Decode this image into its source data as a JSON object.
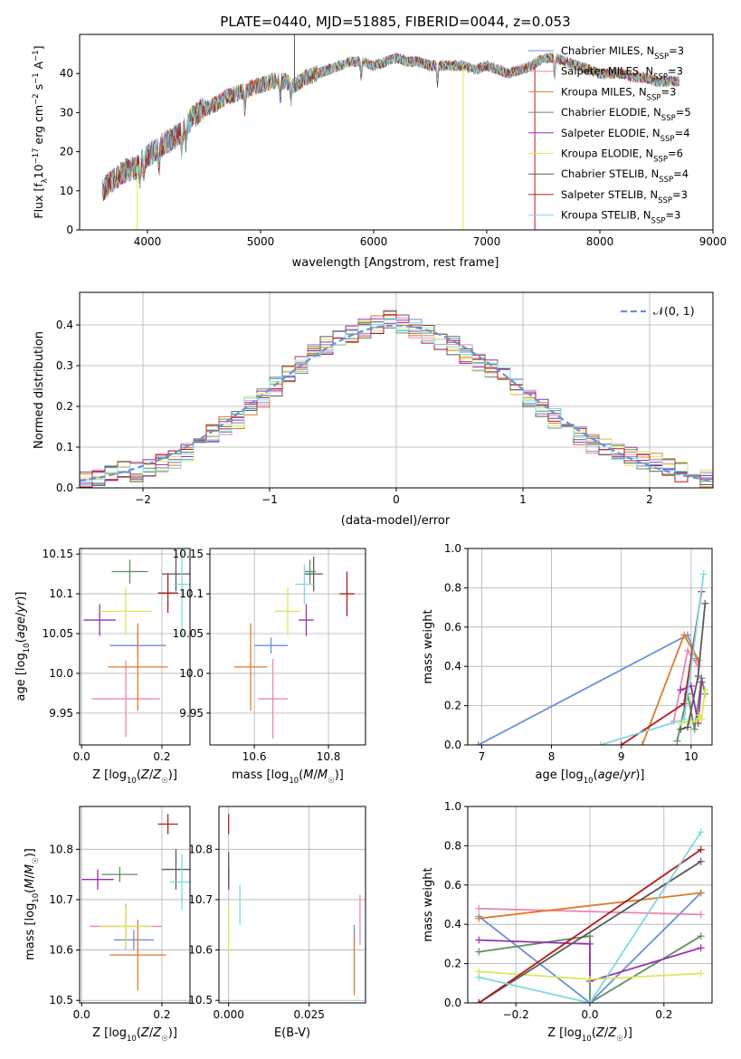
{
  "title": "PLATE=0440, MJD=51885, FIBERID=0044, z=0.053",
  "colors": {
    "ch_miles": "#6a8fd8",
    "sa_miles": "#e889b3",
    "kr_miles": "#e07b2a",
    "ch_elodie": "#5d8f5d",
    "sa_elodie": "#9a2fb0",
    "kr_elodie": "#d9e85a",
    "ch_stelib": "#5a5a5a",
    "sa_stelib": "#b01c1c",
    "kr_stelib": "#7fd9e0",
    "normal": "#6a8fd8",
    "grid": "#b0b0b0"
  },
  "legend_spectrum": [
    {
      "key": "ch_miles",
      "text": "Chabrier MILES, N",
      "sub": "SSP",
      "suffix": "=3"
    },
    {
      "key": "sa_miles",
      "text": "Salpeter MILES, N",
      "sub": "SSP",
      "suffix": "=3"
    },
    {
      "key": "kr_miles",
      "text": "Kroupa MILES, N",
      "sub": "SSP",
      "suffix": "=3"
    },
    {
      "key": "ch_elodie",
      "text": "Chabrier ELODIE, N",
      "sub": "SSP",
      "suffix": "=5"
    },
    {
      "key": "sa_elodie",
      "text": "Salpeter ELODIE, N",
      "sub": "SSP",
      "suffix": "=4"
    },
    {
      "key": "kr_elodie",
      "text": "Kroupa ELODIE, N",
      "sub": "SSP",
      "suffix": "=6"
    },
    {
      "key": "ch_stelib",
      "text": "Chabrier STELIB, N",
      "sub": "SSP",
      "suffix": "=4"
    },
    {
      "key": "sa_stelib",
      "text": "Salpeter STELIB, N",
      "sub": "SSP",
      "suffix": "=3"
    },
    {
      "key": "kr_stelib",
      "text": "Kroupa STELIB, N",
      "sub": "SSP",
      "suffix": "=3"
    }
  ],
  "legend_hist": {
    "label": "𝒩(0, 1)"
  },
  "chart_data": [
    {
      "type": "line",
      "name": "spectrum",
      "xlabel": "wavelength [Angstrom, rest frame]",
      "ylabel": "Flux [f_λ10^-17 erg cm^-2 s^-1 A^-1]",
      "xlim": [
        3400,
        9000
      ],
      "ylim": [
        0,
        50
      ],
      "xticks": [
        4000,
        5000,
        6000,
        7000,
        8000,
        9000
      ],
      "yticks": [
        0,
        10,
        20,
        30,
        40
      ],
      "x": [
        3600,
        3700,
        3800,
        3900,
        4000,
        4100,
        4200,
        4300,
        4400,
        4500,
        4600,
        4700,
        4800,
        4900,
        5000,
        5100,
        5200,
        5300,
        5400,
        5500,
        5600,
        5700,
        5800,
        5900,
        6000,
        6100,
        6200,
        6300,
        6400,
        6500,
        6600,
        6700,
        6800,
        6900,
        7000,
        7100,
        7200,
        7300,
        7400,
        7500,
        7600,
        7700,
        7800,
        7900,
        8000,
        8100,
        8200,
        8300,
        8400,
        8500,
        8600,
        8700
      ],
      "y": [
        10,
        13,
        15,
        16,
        19,
        21,
        23,
        25,
        29,
        31,
        32,
        34,
        35,
        36,
        37,
        38,
        38,
        37,
        39,
        40,
        41,
        42,
        43,
        43,
        42,
        43,
        44,
        43,
        43,
        42,
        42,
        42,
        42,
        41,
        42,
        41,
        40,
        41,
        42,
        44,
        44,
        43,
        42,
        41,
        40,
        40,
        40,
        39,
        39,
        38,
        38,
        38
      ]
    },
    {
      "type": "bar",
      "name": "residuals",
      "xlabel": "(data-model)/error",
      "ylabel": "Normed distribution",
      "xlim": [
        -2.5,
        2.5
      ],
      "ylim": [
        0,
        0.48
      ],
      "xticks": [
        -2,
        -1,
        0,
        1,
        2
      ],
      "xtick_labels": [
        "−2",
        "−1",
        "0",
        "1",
        "2"
      ],
      "yticks": [
        0.0,
        0.1,
        0.2,
        0.3,
        0.4
      ],
      "bin_edges": [
        -2.5,
        -2.4,
        -2.3,
        -2.2,
        -2.1,
        -2.0,
        -1.9,
        -1.8,
        -1.7,
        -1.6,
        -1.5,
        -1.4,
        -1.3,
        -1.2,
        -1.1,
        -1.0,
        -0.9,
        -0.8,
        -0.7,
        -0.6,
        -0.5,
        -0.4,
        -0.3,
        -0.2,
        -0.1,
        0.0,
        0.1,
        0.2,
        0.3,
        0.4,
        0.5,
        0.6,
        0.7,
        0.8,
        0.9,
        1.0,
        1.1,
        1.2,
        1.3,
        1.4,
        1.5,
        1.6,
        1.7,
        1.8,
        1.9,
        2.0,
        2.1,
        2.2,
        2.3,
        2.4,
        2.5
      ],
      "values": [
        0.02,
        0.03,
        0.03,
        0.04,
        0.04,
        0.05,
        0.06,
        0.07,
        0.09,
        0.11,
        0.13,
        0.15,
        0.17,
        0.2,
        0.22,
        0.25,
        0.28,
        0.3,
        0.33,
        0.35,
        0.37,
        0.38,
        0.39,
        0.4,
        0.41,
        0.4,
        0.39,
        0.38,
        0.36,
        0.35,
        0.33,
        0.31,
        0.29,
        0.27,
        0.25,
        0.22,
        0.2,
        0.17,
        0.15,
        0.13,
        0.11,
        0.1,
        0.09,
        0.08,
        0.07,
        0.06,
        0.05,
        0.04,
        0.03,
        0.02
      ]
    },
    {
      "type": "scatter",
      "name": "age-vs-Z",
      "xlabel": "Z [log10(Z/Z☉)]",
      "ylabel": "age [log10(age/yr)]",
      "xlim": [
        -0.005,
        0.27
      ],
      "ylim": [
        9.91,
        10.157
      ],
      "xticks": [
        0.0,
        0.2
      ],
      "xtick_labels": [
        "0.0",
        "0.2"
      ],
      "yticks": [
        9.95,
        10.0,
        10.05,
        10.1,
        10.15
      ],
      "points": [
        {
          "key": "ch_miles",
          "x": 0.14,
          "y": 10.035,
          "ex": 0.07,
          "ey": 0.015
        },
        {
          "key": "sa_miles",
          "x": 0.11,
          "y": 9.968,
          "ex": 0.085,
          "ey": 0.048
        },
        {
          "key": "kr_miles",
          "x": 0.14,
          "y": 10.008,
          "ex": 0.075,
          "ey": 0.055
        },
        {
          "key": "ch_elodie",
          "x": 0.12,
          "y": 10.128,
          "ex": 0.045,
          "ey": 0.015
        },
        {
          "key": "sa_elodie",
          "x": 0.045,
          "y": 10.067,
          "ex": 0.04,
          "ey": 0.02
        },
        {
          "key": "kr_elodie",
          "x": 0.11,
          "y": 10.078,
          "ex": 0.065,
          "ey": 0.03
        },
        {
          "key": "ch_stelib",
          "x": 0.235,
          "y": 10.125,
          "ex": 0.035,
          "ey": 0.022
        },
        {
          "key": "sa_stelib",
          "x": 0.215,
          "y": 10.101,
          "ex": 0.025,
          "ey": 0.025
        },
        {
          "key": "kr_stelib",
          "x": 0.25,
          "y": 10.112,
          "ex": 0.02,
          "ey": 0.065
        }
      ]
    },
    {
      "type": "scatter",
      "name": "age-vs-mass",
      "xlabel": "mass [log10(M/M☉)]",
      "ylabel": "",
      "xlim": [
        10.48,
        10.9
      ],
      "ylim": [
        9.91,
        10.157
      ],
      "xticks": [
        10.6,
        10.8
      ],
      "xtick_labels": [
        "10.6",
        "10.8"
      ],
      "yticks": [
        9.95,
        10.0,
        10.05,
        10.1,
        10.15
      ],
      "points": [
        {
          "key": "ch_miles",
          "x": 10.645,
          "y": 10.035,
          "ex": 0.045,
          "ey": 0.01
        },
        {
          "key": "sa_miles",
          "x": 10.65,
          "y": 9.968,
          "ex": 0.04,
          "ey": 0.05
        },
        {
          "key": "kr_miles",
          "x": 10.59,
          "y": 10.008,
          "ex": 0.045,
          "ey": 0.055
        },
        {
          "key": "ch_elodie",
          "x": 10.75,
          "y": 10.128,
          "ex": 0.015,
          "ey": 0.015
        },
        {
          "key": "sa_elodie",
          "x": 10.74,
          "y": 10.067,
          "ex": 0.02,
          "ey": 0.02
        },
        {
          "key": "kr_elodie",
          "x": 10.69,
          "y": 10.078,
          "ex": 0.035,
          "ey": 0.03
        },
        {
          "key": "ch_stelib",
          "x": 10.76,
          "y": 10.125,
          "ex": 0.025,
          "ey": 0.022
        },
        {
          "key": "sa_stelib",
          "x": 10.85,
          "y": 10.1,
          "ex": 0.02,
          "ey": 0.028
        },
        {
          "key": "kr_stelib",
          "x": 10.735,
          "y": 10.112,
          "ex": 0.025,
          "ey": 0.025
        }
      ]
    },
    {
      "type": "line",
      "name": "mass-weight-vs-age",
      "xlabel": "age [log10(age/yr)]",
      "ylabel": "mass weight",
      "xlim": [
        6.8,
        10.3
      ],
      "ylim": [
        0,
        1.0
      ],
      "xticks": [
        7,
        8,
        9,
        10
      ],
      "yticks": [
        0.0,
        0.2,
        0.4,
        0.6,
        0.8,
        1.0
      ],
      "series": [
        {
          "key": "ch_miles",
          "x": [
            6.95,
            9.95,
            10.08
          ],
          "y": [
            0.0,
            0.56,
            0.44
          ]
        },
        {
          "key": "sa_miles",
          "x": [
            9.75,
            9.95,
            10.1
          ],
          "y": [
            0.12,
            0.48,
            0.4
          ]
        },
        {
          "key": "kr_miles",
          "x": [
            9.3,
            9.9,
            10.1
          ],
          "y": [
            0.0,
            0.56,
            0.43
          ]
        },
        {
          "key": "ch_elodie",
          "x": [
            9.8,
            9.95,
            10.05,
            10.15,
            10.2
          ],
          "y": [
            0.02,
            0.26,
            0.08,
            0.34,
            0.26
          ]
        },
        {
          "key": "sa_elodie",
          "x": [
            9.85,
            10.0,
            10.1,
            10.15
          ],
          "y": [
            0.28,
            0.3,
            0.11,
            0.32
          ]
        },
        {
          "key": "kr_elodie",
          "x": [
            9.85,
            9.98,
            10.08,
            10.12,
            10.15,
            10.2
          ],
          "y": [
            0.11,
            0.12,
            0.12,
            0.15,
            0.13,
            0.28
          ]
        },
        {
          "key": "ch_stelib",
          "x": [
            9.85,
            9.95,
            10.1,
            10.2
          ],
          "y": [
            0.08,
            0.09,
            0.35,
            0.72
          ]
        },
        {
          "key": "sa_stelib",
          "x": [
            9.0,
            9.9,
            10.15
          ],
          "y": [
            0.0,
            0.21,
            0.78
          ]
        },
        {
          "key": "kr_stelib",
          "x": [
            8.7,
            9.9,
            10.18
          ],
          "y": [
            0.0,
            0.13,
            0.87
          ]
        }
      ]
    },
    {
      "type": "scatter",
      "name": "mass-vs-Z",
      "xlabel": "Z [log10(Z/Z☉)]",
      "ylabel": "mass [log10(M/M☉)]",
      "xlim": [
        -0.005,
        0.27
      ],
      "ylim": [
        10.495,
        10.885
      ],
      "xticks": [
        0.0,
        0.2
      ],
      "xtick_labels": [
        "0.0",
        "0.2"
      ],
      "yticks": [
        10.5,
        10.6,
        10.7,
        10.8
      ],
      "points": [
        {
          "key": "ch_miles",
          "x": 0.13,
          "y": 10.62,
          "ex": 0.05,
          "ey": 0.02
        },
        {
          "key": "sa_miles",
          "x": 0.11,
          "y": 10.647,
          "ex": 0.09,
          "ey": 0.045
        },
        {
          "key": "kr_miles",
          "x": 0.14,
          "y": 10.59,
          "ex": 0.07,
          "ey": 0.07
        },
        {
          "key": "ch_elodie",
          "x": 0.095,
          "y": 10.75,
          "ex": 0.045,
          "ey": 0.015
        },
        {
          "key": "sa_elodie",
          "x": 0.04,
          "y": 10.74,
          "ex": 0.04,
          "ey": 0.02
        },
        {
          "key": "kr_elodie",
          "x": 0.11,
          "y": 10.647,
          "ex": 0.065,
          "ey": 0.04
        },
        {
          "key": "ch_stelib",
          "x": 0.235,
          "y": 10.76,
          "ex": 0.035,
          "ey": 0.04
        },
        {
          "key": "sa_stelib",
          "x": 0.215,
          "y": 10.85,
          "ex": 0.025,
          "ey": 0.02
        },
        {
          "key": "kr_stelib",
          "x": 0.25,
          "y": 10.735,
          "ex": 0.03,
          "ey": 0.055
        }
      ]
    },
    {
      "type": "scatter",
      "name": "mass-vs-EBV",
      "xlabel": "E(B-V)",
      "ylabel": "",
      "xlim": [
        -0.003,
        0.0425
      ],
      "ylim": [
        10.495,
        10.885
      ],
      "xticks": [
        0.0,
        0.025
      ],
      "xtick_labels": [
        "0.000",
        "0.025"
      ],
      "yticks": [
        10.5,
        10.6,
        10.7,
        10.8
      ],
      "points": [
        {
          "key": "ch_miles",
          "x": 0.039,
          "y": 10.63,
          "ex": 0.0,
          "ey": 0.02
        },
        {
          "key": "sa_miles",
          "x": 0.0408,
          "y": 10.66,
          "ex": 0.0,
          "ey": 0.05
        },
        {
          "key": "kr_miles",
          "x": 0.039,
          "y": 10.57,
          "ex": 0.0,
          "ey": 0.06
        },
        {
          "key": "ch_elodie",
          "x": 0.0,
          "y": 10.75,
          "ex": 0.0,
          "ey": 0.015
        },
        {
          "key": "sa_elodie",
          "x": 0.0,
          "y": 10.74,
          "ex": 0.0,
          "ey": 0.02
        },
        {
          "key": "kr_elodie",
          "x": 0.0,
          "y": 10.64,
          "ex": 0.0,
          "ey": 0.05
        },
        {
          "key": "ch_stelib",
          "x": 0.0,
          "y": 10.76,
          "ex": 0.0,
          "ey": 0.035
        },
        {
          "key": "sa_stelib",
          "x": 0.0,
          "y": 10.85,
          "ex": 0.0,
          "ey": 0.02
        },
        {
          "key": "kr_stelib",
          "x": 0.0035,
          "y": 10.69,
          "ex": 0.0,
          "ey": 0.04
        }
      ]
    },
    {
      "type": "line",
      "name": "mass-weight-vs-Z",
      "xlabel": "Z [log10(Z/Z☉)]",
      "ylabel": "mass weight",
      "xlim": [
        -0.33,
        0.33
      ],
      "ylim": [
        0,
        1.0
      ],
      "xticks": [
        -0.2,
        0.0,
        0.2
      ],
      "xtick_labels": [
        "−0.2",
        "0.0",
        "0.2"
      ],
      "yticks": [
        0.0,
        0.2,
        0.4,
        0.6,
        0.8,
        1.0
      ],
      "series": [
        {
          "key": "ch_miles",
          "x": [
            -0.3,
            0.0,
            0.3
          ],
          "y": [
            0.44,
            0.0,
            0.56
          ]
        },
        {
          "key": "sa_miles",
          "x": [
            -0.3,
            0.3
          ],
          "y": [
            0.48,
            0.45
          ]
        },
        {
          "key": "kr_miles",
          "x": [
            -0.3,
            0.3
          ],
          "y": [
            0.43,
            0.56
          ]
        },
        {
          "key": "ch_elodie",
          "x": [
            -0.3,
            0.0,
            0.0,
            0.3
          ],
          "y": [
            0.26,
            0.34,
            0.0,
            0.34
          ]
        },
        {
          "key": "sa_elodie",
          "x": [
            -0.3,
            0.0,
            0.0,
            0.3
          ],
          "y": [
            0.32,
            0.3,
            0.11,
            0.28
          ]
        },
        {
          "key": "kr_elodie",
          "x": [
            -0.3,
            0.0,
            0.3
          ],
          "y": [
            0.16,
            0.12,
            0.15
          ]
        },
        {
          "key": "ch_stelib",
          "x": [
            -0.3,
            0.3
          ],
          "y": [
            0.0,
            0.72
          ]
        },
        {
          "key": "sa_stelib",
          "x": [
            -0.3,
            0.3
          ],
          "y": [
            0.0,
            0.78
          ]
        },
        {
          "key": "kr_stelib",
          "x": [
            -0.3,
            0.0,
            0.3
          ],
          "y": [
            0.13,
            0.0,
            0.87
          ]
        }
      ]
    }
  ]
}
